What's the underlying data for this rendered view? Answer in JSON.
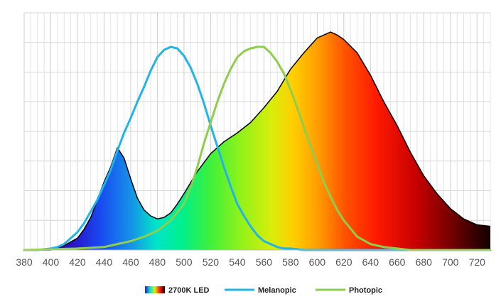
{
  "chart_data": {
    "type": "area",
    "title": "",
    "xlabel": "",
    "ylabel": "",
    "xlim": [
      380,
      730
    ],
    "ylim": [
      0,
      1.6
    ],
    "x_ticks": [
      380,
      400,
      420,
      440,
      460,
      480,
      500,
      520,
      540,
      560,
      580,
      600,
      620,
      640,
      660,
      680,
      700,
      720
    ],
    "grid": true,
    "legend_position": "bottom",
    "series": [
      {
        "name": "2700K LED",
        "kind": "filled-area",
        "fill": "visible-spectrum gradient",
        "stroke": "#000000",
        "x": [
          380,
          400,
          410,
          420,
          425,
          430,
          435,
          440,
          445,
          450,
          455,
          460,
          465,
          470,
          475,
          480,
          485,
          490,
          495,
          500,
          510,
          520,
          530,
          540,
          550,
          560,
          570,
          580,
          590,
          600,
          605,
          610,
          615,
          620,
          630,
          640,
          650,
          660,
          670,
          680,
          690,
          700,
          710,
          720,
          730
        ],
        "y": [
          0.0,
          0.0,
          0.03,
          0.08,
          0.14,
          0.22,
          0.34,
          0.46,
          0.56,
          0.69,
          0.62,
          0.48,
          0.35,
          0.27,
          0.23,
          0.21,
          0.22,
          0.25,
          0.31,
          0.38,
          0.53,
          0.65,
          0.73,
          0.79,
          0.86,
          0.96,
          1.07,
          1.22,
          1.33,
          1.43,
          1.45,
          1.47,
          1.45,
          1.42,
          1.33,
          1.18,
          1.0,
          0.84,
          0.66,
          0.5,
          0.38,
          0.28,
          0.21,
          0.17,
          0.16
        ]
      },
      {
        "name": "Melanopic",
        "kind": "line",
        "color": "#22b3e8",
        "x": [
          380,
          390,
          400,
          405,
          410,
          415,
          420,
          425,
          430,
          435,
          440,
          445,
          450,
          455,
          460,
          465,
          470,
          475,
          480,
          485,
          490,
          495,
          500,
          505,
          510,
          515,
          520,
          525,
          530,
          535,
          540,
          545,
          550,
          555,
          560,
          565,
          570,
          575,
          580,
          590,
          600,
          620,
          640,
          660,
          680,
          700,
          730
        ],
        "y": [
          0.0,
          0.0,
          0.01,
          0.02,
          0.04,
          0.08,
          0.12,
          0.18,
          0.26,
          0.34,
          0.44,
          0.54,
          0.67,
          0.79,
          0.89,
          1.0,
          1.1,
          1.21,
          1.3,
          1.35,
          1.37,
          1.36,
          1.31,
          1.23,
          1.12,
          0.99,
          0.84,
          0.7,
          0.56,
          0.43,
          0.31,
          0.23,
          0.16,
          0.1,
          0.06,
          0.04,
          0.02,
          0.01,
          0.01,
          0.0,
          0.0,
          0.0,
          0.0,
          0.0,
          0.0,
          0.0,
          0.0
        ]
      },
      {
        "name": "Photopic",
        "kind": "line",
        "color": "#8ece4c",
        "x": [
          380,
          420,
          440,
          450,
          460,
          470,
          480,
          490,
          500,
          505,
          510,
          515,
          520,
          525,
          530,
          535,
          540,
          545,
          550,
          555,
          560,
          565,
          570,
          575,
          580,
          585,
          590,
          595,
          600,
          605,
          610,
          615,
          620,
          630,
          640,
          650,
          660,
          670,
          680,
          700,
          730
        ],
        "y": [
          0.0,
          0.01,
          0.02,
          0.04,
          0.06,
          0.09,
          0.13,
          0.2,
          0.31,
          0.42,
          0.56,
          0.72,
          0.86,
          1.0,
          1.12,
          1.22,
          1.3,
          1.34,
          1.36,
          1.37,
          1.37,
          1.33,
          1.27,
          1.19,
          1.08,
          0.96,
          0.83,
          0.7,
          0.58,
          0.46,
          0.36,
          0.27,
          0.2,
          0.09,
          0.04,
          0.02,
          0.01,
          0.0,
          0.0,
          0.0,
          0.0
        ]
      }
    ]
  }
}
